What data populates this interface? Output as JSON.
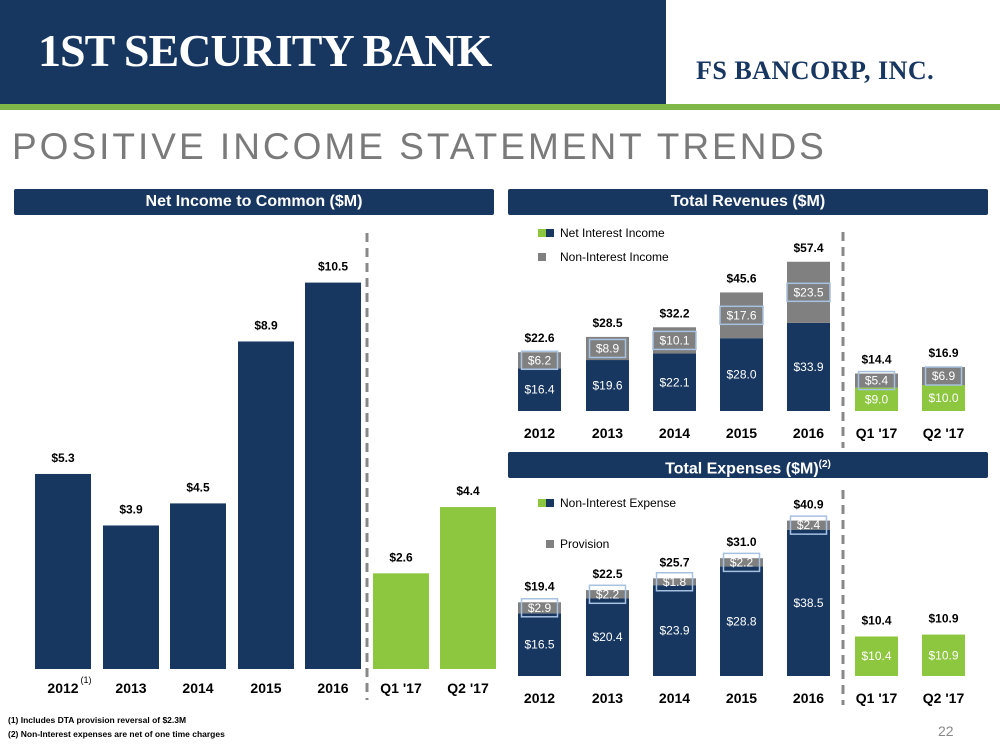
{
  "header": {
    "brand": "1ST SECURITY BANK",
    "corp": "FS BANCORP, INC.",
    "title": "POSITIVE INCOME STATEMENT TRENDS",
    "page": "22"
  },
  "footnotes": [
    "(1)   Includes DTA provision reversal of $2.3M",
    "(2)   Non-Interest expenses are net of one time charges"
  ],
  "colors": {
    "navy": "#173660",
    "green": "#8dc63f",
    "gray": "#808080"
  },
  "chart_data": [
    {
      "type": "bar",
      "title": "Net Income to Common ($M)",
      "categories": [
        "2012",
        "2013",
        "2014",
        "2015",
        "2016",
        "Q1 '17",
        "Q2 '17"
      ],
      "values": [
        5.3,
        3.9,
        4.5,
        8.9,
        10.5,
        2.6,
        4.4
      ],
      "value_labels": [
        "$5.3",
        "$3.9",
        "$4.5",
        "$8.9",
        "$10.5",
        "$2.6",
        "$4.4"
      ],
      "footnote_marker": "(1)",
      "ylim": [
        0,
        12
      ]
    },
    {
      "type": "bar",
      "stacked": true,
      "title": "Total Revenues ($M)",
      "categories": [
        "2012",
        "2013",
        "2014",
        "2015",
        "2016",
        "Q1 '17",
        "Q2 '17"
      ],
      "series": [
        {
          "name": "Net Interest Income",
          "values": [
            16.4,
            19.6,
            22.1,
            28.0,
            33.9,
            9.0,
            10.0
          ],
          "labels": [
            "$16.4",
            "$19.6",
            "$22.1",
            "$28.0",
            "$33.9",
            "$9.0",
            "$10.0"
          ]
        },
        {
          "name": "Non-Interest Income",
          "values": [
            6.2,
            8.9,
            10.1,
            17.6,
            23.5,
            5.4,
            6.9
          ],
          "labels": [
            "$6.2",
            "$8.9",
            "$10.1",
            "$17.6",
            "$23.5",
            "$5.4",
            "$6.9"
          ]
        }
      ],
      "totals": [
        "$22.6",
        "$28.5",
        "$32.2",
        "$45.6",
        "$57.4",
        "$14.4",
        "$16.9"
      ],
      "ylim": [
        0,
        65
      ]
    },
    {
      "type": "bar",
      "stacked": true,
      "title": "Total Expenses ($M)",
      "title_sup": "(2)",
      "categories": [
        "2012",
        "2013",
        "2014",
        "2015",
        "2016",
        "Q1 '17",
        "Q2 '17"
      ],
      "series": [
        {
          "name": "Non-Interest Expense",
          "values": [
            16.5,
            20.4,
            23.9,
            28.8,
            38.5,
            10.4,
            10.9
          ],
          "labels": [
            "$16.5",
            "$20.4",
            "$23.9",
            "$28.8",
            "$38.5",
            "$10.4",
            "$10.9"
          ]
        },
        {
          "name": "Provision",
          "values": [
            2.9,
            2.2,
            1.8,
            2.2,
            2.4,
            0,
            0
          ],
          "labels": [
            "$2.9",
            "$2.2",
            "$1.8",
            "$2.2",
            "$2.4",
            "",
            ""
          ]
        }
      ],
      "totals": [
        "$19.4",
        "$22.5",
        "$25.7",
        "$31.0",
        "$40.9",
        "$10.4",
        "$10.9"
      ],
      "ylim": [
        0,
        45
      ]
    }
  ]
}
